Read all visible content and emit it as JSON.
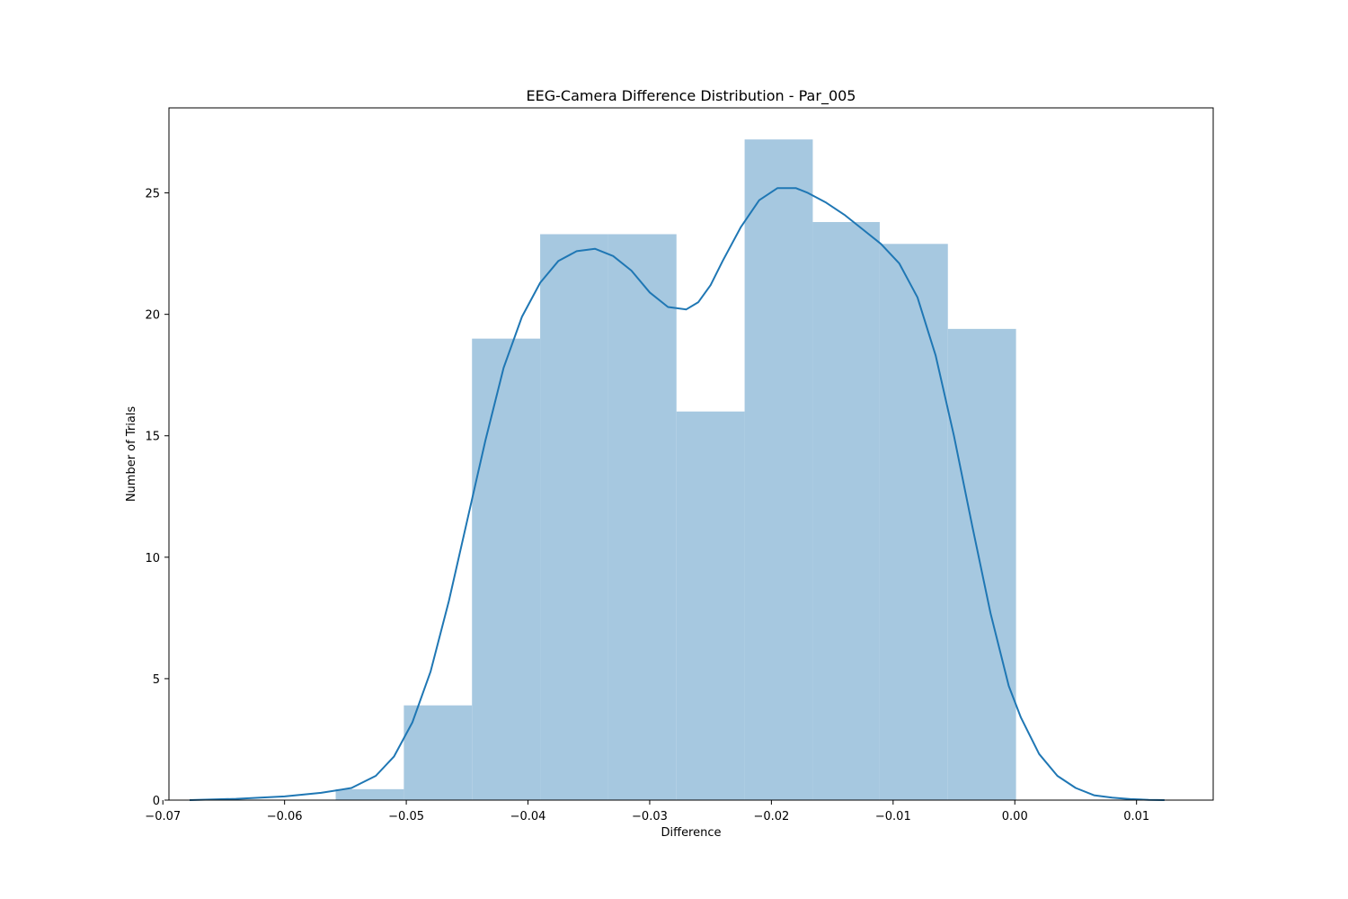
{
  "chart_data": {
    "type": "bar",
    "title": "EEG-Camera Difference Distribution - Par_005",
    "xlabel": "Difference",
    "ylabel": "Number of Trials",
    "xlim": [
      -0.0695,
      0.0163
    ],
    "ylim": [
      0,
      28.5
    ],
    "grid": false,
    "legend": "none",
    "xticks": [
      -0.07,
      -0.06,
      -0.05,
      -0.04,
      -0.03,
      -0.02,
      -0.01,
      0.0,
      0.01
    ],
    "xtick_labels": [
      "−0.07",
      "−0.06",
      "−0.05",
      "−0.04",
      "−0.03",
      "−0.02",
      "−0.01",
      "0.00",
      "0.01"
    ],
    "yticks": [
      0,
      5,
      10,
      15,
      20,
      25
    ],
    "ytick_labels": [
      "0",
      "5",
      "10",
      "15",
      "20",
      "25"
    ],
    "colors": {
      "bar": "#a6c8e0",
      "kde": "#1f77b4"
    },
    "histogram": {
      "bin_edges": [
        -0.0558,
        -0.0502,
        -0.0446,
        -0.039,
        -0.0334,
        -0.0278,
        -0.0222,
        -0.0166,
        -0.0111,
        -0.0055,
        0.0001
      ],
      "values": [
        0.45,
        3.9,
        19.0,
        23.3,
        23.3,
        16.0,
        27.2,
        23.8,
        22.9,
        19.4
      ]
    },
    "kde": {
      "x": [
        -0.0678,
        -0.064,
        -0.06,
        -0.057,
        -0.0545,
        -0.0525,
        -0.051,
        -0.0495,
        -0.048,
        -0.0465,
        -0.045,
        -0.0435,
        -0.042,
        -0.0405,
        -0.039,
        -0.0375,
        -0.036,
        -0.0345,
        -0.033,
        -0.0315,
        -0.03,
        -0.0285,
        -0.027,
        -0.026,
        -0.025,
        -0.024,
        -0.0225,
        -0.021,
        -0.0195,
        -0.018,
        -0.017,
        -0.0155,
        -0.014,
        -0.0125,
        -0.011,
        -0.0095,
        -0.008,
        -0.0065,
        -0.005,
        -0.0035,
        -0.002,
        -0.0005,
        0.0005,
        0.002,
        0.0035,
        0.005,
        0.0065,
        0.008,
        0.0095,
        0.011,
        0.0123
      ],
      "y": [
        0.0,
        0.05,
        0.15,
        0.3,
        0.5,
        1.0,
        1.8,
        3.2,
        5.3,
        8.2,
        11.5,
        14.8,
        17.8,
        19.9,
        21.3,
        22.2,
        22.6,
        22.7,
        22.4,
        21.8,
        20.9,
        20.3,
        20.2,
        20.5,
        21.2,
        22.2,
        23.6,
        24.7,
        25.2,
        25.2,
        25.0,
        24.6,
        24.1,
        23.5,
        22.9,
        22.1,
        20.7,
        18.3,
        15.0,
        11.3,
        7.7,
        4.7,
        3.4,
        1.9,
        1.0,
        0.5,
        0.2,
        0.1,
        0.04,
        0.01,
        0.0
      ]
    }
  }
}
